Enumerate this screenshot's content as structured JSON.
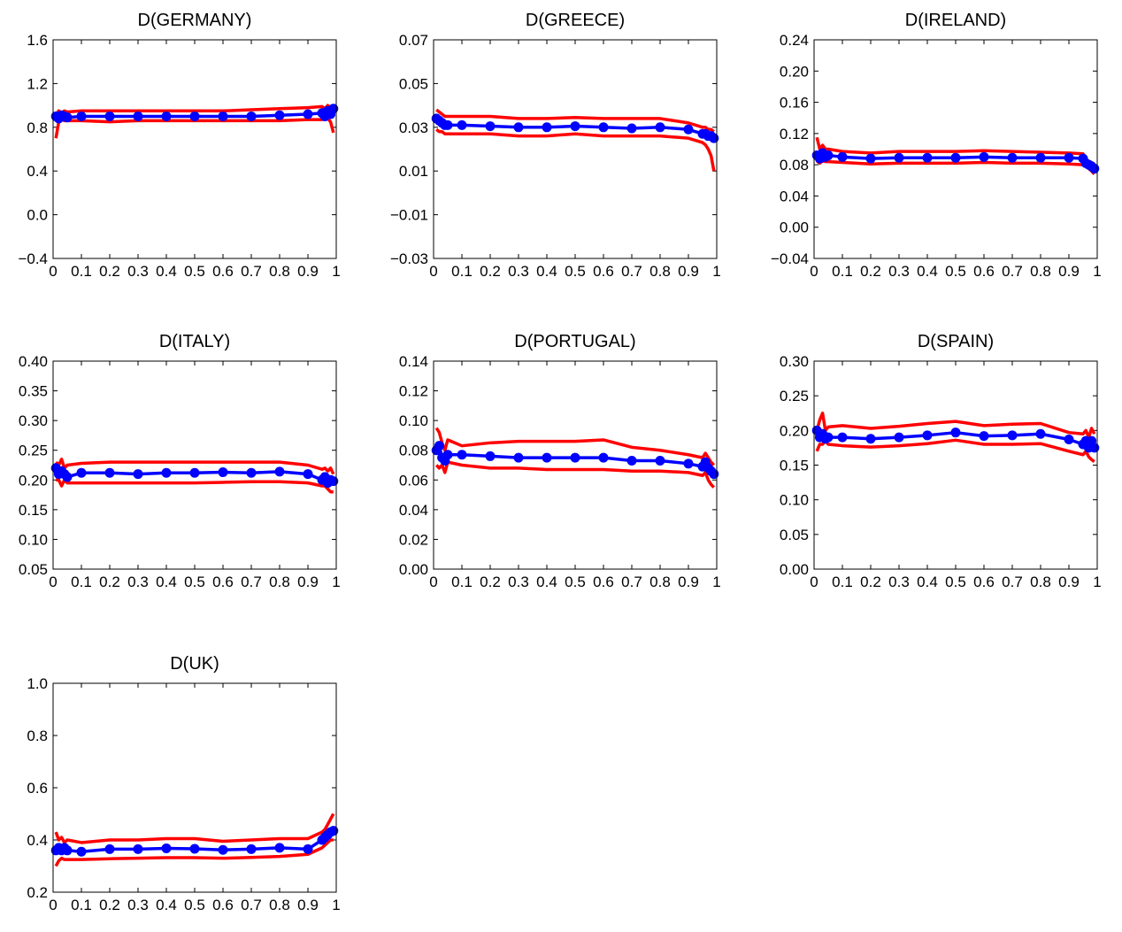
{
  "chart_data": [
    {
      "type": "line",
      "title": "D(GERMANY)",
      "x": [
        0.01,
        0.02,
        0.03,
        0.04,
        0.05,
        0.1,
        0.2,
        0.3,
        0.4,
        0.5,
        0.6,
        0.7,
        0.8,
        0.9,
        0.95,
        0.96,
        0.97,
        0.98,
        0.99
      ],
      "xlim": [
        0,
        1
      ],
      "xticks": [
        0,
        0.1,
        0.2,
        0.3,
        0.4,
        0.5,
        0.6,
        0.7,
        0.8,
        0.9,
        1
      ],
      "ylim": [
        -0.4,
        1.6
      ],
      "yticks": [
        {
          "value": -0.4,
          "label": "−0.4"
        },
        {
          "value": 0,
          "label": "0.0"
        },
        0.4,
        0.8,
        1.2,
        1.6
      ],
      "series": [
        {
          "color": "#ff0000",
          "values": [
            0.92,
            0.95,
            0.93,
            0.95,
            0.94,
            0.95,
            0.95,
            0.95,
            0.95,
            0.95,
            0.95,
            0.96,
            0.97,
            0.98,
            0.99,
            0.97,
            1.0,
            0.98,
            0.99
          ]
        },
        {
          "color": "#ff0000",
          "values": [
            0.7,
            0.85,
            0.87,
            0.86,
            0.86,
            0.86,
            0.85,
            0.86,
            0.86,
            0.86,
            0.86,
            0.86,
            0.86,
            0.87,
            0.87,
            0.88,
            0.88,
            0.85,
            0.75
          ]
        },
        {
          "color": "#0000ff",
          "marker": "o",
          "values": [
            0.9,
            0.88,
            0.91,
            0.9,
            0.89,
            0.9,
            0.9,
            0.9,
            0.9,
            0.9,
            0.9,
            0.9,
            0.91,
            0.92,
            0.93,
            0.9,
            0.95,
            0.92,
            0.97
          ]
        }
      ]
    },
    {
      "type": "line",
      "title": "D(GREECE)",
      "x": [
        0.01,
        0.02,
        0.03,
        0.04,
        0.05,
        0.1,
        0.2,
        0.3,
        0.4,
        0.5,
        0.6,
        0.7,
        0.8,
        0.9,
        0.95,
        0.96,
        0.97,
        0.98,
        0.99
      ],
      "xlim": [
        0,
        1
      ],
      "xticks": [
        0,
        0.1,
        0.2,
        0.3,
        0.4,
        0.5,
        0.6,
        0.7,
        0.8,
        0.9,
        1
      ],
      "ylim": [
        -0.03,
        0.07
      ],
      "yticks": [
        {
          "value": -0.03,
          "label": "−0.03"
        },
        {
          "value": -0.01,
          "label": "−0.01"
        },
        0.01,
        0.03,
        0.05,
        0.07
      ],
      "series": [
        {
          "color": "#ff0000",
          "values": [
            0.038,
            0.037,
            0.036,
            0.035,
            0.035,
            0.035,
            0.035,
            0.034,
            0.034,
            0.0345,
            0.034,
            0.034,
            0.034,
            0.032,
            0.03,
            0.03,
            0.029,
            0.029,
            0.028
          ]
        },
        {
          "color": "#ff0000",
          "values": [
            0.029,
            0.028,
            0.028,
            0.027,
            0.027,
            0.027,
            0.027,
            0.026,
            0.026,
            0.027,
            0.026,
            0.026,
            0.026,
            0.025,
            0.023,
            0.022,
            0.02,
            0.017,
            0.01
          ]
        },
        {
          "color": "#0000ff",
          "marker": "o",
          "values": [
            0.034,
            0.033,
            0.032,
            0.031,
            0.031,
            0.031,
            0.0305,
            0.03,
            0.03,
            0.0305,
            0.03,
            0.0295,
            0.03,
            0.029,
            0.027,
            0.027,
            0.026,
            0.026,
            0.025
          ]
        }
      ]
    },
    {
      "type": "line",
      "title": "D(IRELAND)",
      "x": [
        0.01,
        0.02,
        0.03,
        0.04,
        0.05,
        0.1,
        0.2,
        0.3,
        0.4,
        0.5,
        0.6,
        0.7,
        0.8,
        0.9,
        0.95,
        0.96,
        0.97,
        0.98,
        0.99
      ],
      "xlim": [
        0,
        1
      ],
      "xticks": [
        0,
        0.1,
        0.2,
        0.3,
        0.4,
        0.5,
        0.6,
        0.7,
        0.8,
        0.9,
        1
      ],
      "ylim": [
        -0.04,
        0.24
      ],
      "yticks": [
        {
          "value": -0.04,
          "label": "−0.04"
        },
        {
          "value": 0,
          "label": "0.00"
        },
        0.04,
        0.08,
        0.12,
        0.16,
        {
          "value": 0.2,
          "label": "0.20"
        },
        0.24
      ],
      "series": [
        {
          "color": "#ff0000",
          "values": [
            0.115,
            0.1,
            0.105,
            0.1,
            0.1,
            0.097,
            0.095,
            0.097,
            0.097,
            0.097,
            0.098,
            0.097,
            0.096,
            0.095,
            0.094,
            0.085,
            0.084,
            0.083,
            0.08
          ]
        },
        {
          "color": "#ff0000",
          "values": [
            0.085,
            0.082,
            0.085,
            0.084,
            0.084,
            0.083,
            0.081,
            0.082,
            0.082,
            0.082,
            0.083,
            0.082,
            0.082,
            0.081,
            0.08,
            0.078,
            0.075,
            0.072,
            0.068
          ]
        },
        {
          "color": "#0000ff",
          "marker": "o",
          "values": [
            0.092,
            0.088,
            0.095,
            0.09,
            0.092,
            0.09,
            0.088,
            0.089,
            0.089,
            0.089,
            0.09,
            0.089,
            0.089,
            0.089,
            0.088,
            0.082,
            0.08,
            0.078,
            0.075
          ]
        }
      ]
    },
    {
      "type": "line",
      "title": "D(ITALY)",
      "x": [
        0.01,
        0.02,
        0.03,
        0.04,
        0.05,
        0.1,
        0.2,
        0.3,
        0.4,
        0.5,
        0.6,
        0.7,
        0.8,
        0.9,
        0.95,
        0.96,
        0.97,
        0.98,
        0.99
      ],
      "xlim": [
        0,
        1
      ],
      "xticks": [
        0,
        0.1,
        0.2,
        0.3,
        0.4,
        0.5,
        0.6,
        0.7,
        0.8,
        0.9,
        1
      ],
      "ylim": [
        0.05,
        0.4
      ],
      "yticks": [
        0.05,
        {
          "value": 0.1,
          "label": "0.10"
        },
        0.15,
        {
          "value": 0.2,
          "label": "0.20"
        },
        0.25,
        {
          "value": 0.3,
          "label": "0.30"
        },
        0.35,
        {
          "value": 0.4,
          "label": "0.40"
        }
      ],
      "series": [
        {
          "color": "#ff0000",
          "values": [
            0.23,
            0.225,
            0.235,
            0.22,
            0.225,
            0.228,
            0.23,
            0.23,
            0.23,
            0.23,
            0.23,
            0.23,
            0.23,
            0.225,
            0.218,
            0.22,
            0.215,
            0.22,
            0.21
          ]
        },
        {
          "color": "#ff0000",
          "values": [
            0.2,
            0.2,
            0.19,
            0.2,
            0.195,
            0.195,
            0.195,
            0.195,
            0.195,
            0.195,
            0.196,
            0.197,
            0.197,
            0.195,
            0.19,
            0.19,
            0.185,
            0.18,
            0.18
          ]
        },
        {
          "color": "#0000ff",
          "marker": "o",
          "values": [
            0.22,
            0.21,
            0.215,
            0.21,
            0.205,
            0.212,
            0.212,
            0.21,
            0.212,
            0.212,
            0.213,
            0.212,
            0.214,
            0.21,
            0.2,
            0.205,
            0.195,
            0.2,
            0.198
          ]
        }
      ]
    },
    {
      "type": "line",
      "title": "D(PORTUGAL)",
      "x": [
        0.01,
        0.02,
        0.03,
        0.04,
        0.05,
        0.1,
        0.2,
        0.3,
        0.4,
        0.5,
        0.6,
        0.7,
        0.8,
        0.9,
        0.95,
        0.96,
        0.97,
        0.98,
        0.99
      ],
      "xlim": [
        0,
        1
      ],
      "xticks": [
        0,
        0.1,
        0.2,
        0.3,
        0.4,
        0.5,
        0.6,
        0.7,
        0.8,
        0.9,
        1
      ],
      "ylim": [
        0,
        0.14
      ],
      "yticks": [
        {
          "value": 0,
          "label": "0.00"
        },
        0.02,
        0.04,
        0.06,
        0.08,
        {
          "value": 0.1,
          "label": "0.10"
        },
        0.12,
        0.14
      ],
      "series": [
        {
          "color": "#ff0000",
          "values": [
            0.095,
            0.092,
            0.085,
            0.08,
            0.087,
            0.083,
            0.085,
            0.086,
            0.086,
            0.086,
            0.087,
            0.082,
            0.08,
            0.077,
            0.075,
            0.078,
            0.075,
            0.072,
            0.07
          ]
        },
        {
          "color": "#ff0000",
          "values": [
            0.07,
            0.068,
            0.07,
            0.065,
            0.072,
            0.07,
            0.068,
            0.068,
            0.067,
            0.067,
            0.067,
            0.066,
            0.066,
            0.065,
            0.063,
            0.065,
            0.06,
            0.057,
            0.055
          ]
        },
        {
          "color": "#0000ff",
          "marker": "o",
          "values": [
            0.08,
            0.083,
            0.075,
            0.073,
            0.077,
            0.077,
            0.076,
            0.075,
            0.075,
            0.075,
            0.075,
            0.073,
            0.073,
            0.071,
            0.069,
            0.072,
            0.068,
            0.066,
            0.064
          ]
        }
      ]
    },
    {
      "type": "line",
      "title": "D(SPAIN)",
      "x": [
        0.01,
        0.02,
        0.03,
        0.04,
        0.05,
        0.1,
        0.2,
        0.3,
        0.4,
        0.5,
        0.6,
        0.7,
        0.8,
        0.9,
        0.95,
        0.96,
        0.97,
        0.98,
        0.99
      ],
      "xlim": [
        0,
        1
      ],
      "xticks": [
        0,
        0.1,
        0.2,
        0.3,
        0.4,
        0.5,
        0.6,
        0.7,
        0.8,
        0.9,
        1
      ],
      "ylim": [
        0,
        0.3
      ],
      "yticks": [
        {
          "value": 0,
          "label": "0.00"
        },
        0.05,
        {
          "value": 0.1,
          "label": "0.10"
        },
        0.15,
        {
          "value": 0.2,
          "label": "0.20"
        },
        0.25,
        {
          "value": 0.3,
          "label": "0.30"
        }
      ],
      "series": [
        {
          "color": "#ff0000",
          "values": [
            0.2,
            0.215,
            0.225,
            0.2,
            0.205,
            0.207,
            0.203,
            0.206,
            0.21,
            0.213,
            0.207,
            0.209,
            0.21,
            0.197,
            0.195,
            0.2,
            0.19,
            0.203,
            0.195
          ]
        },
        {
          "color": "#ff0000",
          "values": [
            0.17,
            0.18,
            0.18,
            0.185,
            0.18,
            0.178,
            0.176,
            0.178,
            0.181,
            0.186,
            0.18,
            0.18,
            0.181,
            0.17,
            0.165,
            0.17,
            0.162,
            0.158,
            0.155
          ]
        },
        {
          "color": "#0000ff",
          "marker": "o",
          "values": [
            0.2,
            0.19,
            0.195,
            0.188,
            0.19,
            0.19,
            0.188,
            0.19,
            0.193,
            0.197,
            0.192,
            0.193,
            0.195,
            0.187,
            0.18,
            0.185,
            0.175,
            0.185,
            0.175
          ]
        }
      ]
    },
    {
      "type": "line",
      "title": "D(UK)",
      "x": [
        0.01,
        0.02,
        0.03,
        0.04,
        0.05,
        0.1,
        0.2,
        0.3,
        0.4,
        0.5,
        0.6,
        0.7,
        0.8,
        0.9,
        0.95,
        0.96,
        0.97,
        0.98,
        0.99
      ],
      "xlim": [
        0,
        1
      ],
      "xticks": [
        0,
        0.1,
        0.2,
        0.3,
        0.4,
        0.5,
        0.6,
        0.7,
        0.8,
        0.9,
        1
      ],
      "ylim": [
        0.2,
        1.0
      ],
      "yticks": [
        0.2,
        0.4,
        0.6,
        0.8,
        {
          "value": 1.0,
          "label": "1.0"
        }
      ],
      "series": [
        {
          "color": "#ff0000",
          "values": [
            0.43,
            0.4,
            0.41,
            0.39,
            0.4,
            0.39,
            0.4,
            0.4,
            0.405,
            0.405,
            0.395,
            0.4,
            0.405,
            0.405,
            0.43,
            0.44,
            0.46,
            0.48,
            0.5
          ]
        },
        {
          "color": "#ff0000",
          "values": [
            0.3,
            0.32,
            0.33,
            0.325,
            0.325,
            0.325,
            0.328,
            0.33,
            0.332,
            0.332,
            0.33,
            0.333,
            0.337,
            0.345,
            0.37,
            0.38,
            0.39,
            0.4,
            0.4
          ]
        },
        {
          "color": "#0000ff",
          "marker": "o",
          "values": [
            0.36,
            0.37,
            0.36,
            0.37,
            0.36,
            0.355,
            0.365,
            0.365,
            0.368,
            0.366,
            0.362,
            0.365,
            0.37,
            0.365,
            0.4,
            0.41,
            0.42,
            0.43,
            0.435
          ]
        }
      ]
    }
  ]
}
